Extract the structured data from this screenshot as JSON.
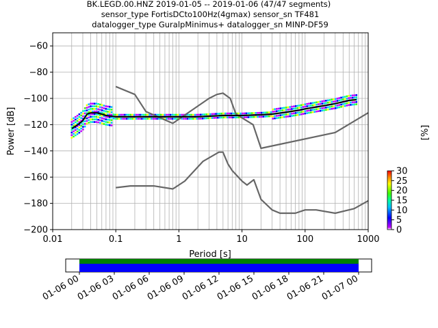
{
  "chart_data": [
    {
      "type": "line",
      "title_lines": [
        "BK.LEGD.00.HNZ   2019-01-05 -- 2019-01-06  (47/47 segments)",
        "sensor_type FortisDCto100Hz(4gmax) sensor_sn TF481",
        "datalogger_type GuralpMinimus+ datalogger_sn MINP-DF59"
      ],
      "xlabel": "Period [s]",
      "ylabel": "Power [dB]",
      "xscale": "log",
      "xlim": [
        0.01,
        1000
      ],
      "ylim": [
        -200,
        -50
      ],
      "x_ticks": [
        0.01,
        0.1,
        1,
        10,
        100,
        1000
      ],
      "x_tick_labels": [
        "0.01",
        "0.1",
        "1",
        "10",
        "100",
        "1000"
      ],
      "y_ticks": [
        -200,
        -180,
        -160,
        -140,
        -120,
        -100,
        -80,
        -60
      ],
      "y_tick_labels": [
        "−200",
        "−180",
        "−160",
        "−140",
        "−120",
        "−100",
        "−80",
        "−60"
      ],
      "grid": true,
      "series": [
        {
          "color": "#666666",
          "x": [
            0.1,
            0.2,
            0.3,
            0.8,
            3.0,
            4.0,
            5.0,
            6.5,
            8.0,
            15,
            20,
            300,
            1000
          ],
          "y": [
            -91,
            -97,
            -110,
            -119,
            -100,
            -97,
            -96,
            -100,
            -112,
            -120,
            -138,
            -126,
            -111
          ]
        },
        {
          "color": "#666666",
          "x": [
            0.1,
            0.17,
            0.4,
            0.8,
            1.24,
            2.4,
            4.3,
            5.0,
            6.0,
            7.0,
            10,
            12,
            15.4,
            20,
            30,
            40,
            70,
            100,
            150,
            300,
            600,
            1000
          ],
          "y": [
            -168,
            -166.7,
            -166.7,
            -169,
            -163,
            -148,
            -141,
            -141,
            -150,
            -155,
            -163,
            -166,
            -162,
            -177,
            -185,
            -187.5,
            -187.5,
            -185,
            -185,
            -187.5,
            -184,
            -178
          ]
        },
        {
          "color": "#000000",
          "x": [
            0.02,
            0.025,
            0.03,
            0.035,
            0.04,
            0.05,
            0.06,
            0.07,
            0.1,
            0.2,
            0.5,
            1,
            2,
            5,
            10,
            20,
            30,
            50,
            80,
            100,
            200,
            300,
            500,
            650
          ],
          "y": [
            -123,
            -120,
            -117,
            -112,
            -111,
            -111,
            -112,
            -113,
            -114,
            -114,
            -114,
            -114,
            -114,
            -113,
            -113,
            -112.5,
            -112,
            -110.5,
            -109,
            -108,
            -105.5,
            -104,
            -101.5,
            -101
          ]
        }
      ],
      "colorbar": {
        "label": "[%]",
        "ticks": [
          0,
          5,
          10,
          15,
          20,
          25,
          30
        ],
        "tick_labels": [
          "0",
          "5",
          "10",
          "15",
          "20",
          "25",
          "30"
        ]
      }
    },
    {
      "type": "bar",
      "description_layers": [
        "data availability",
        "gaps"
      ],
      "colors": [
        "#008000",
        "#0000ff"
      ],
      "x_tick_labels": [
        "01-06 00",
        "01-06 03",
        "01-06 06",
        "01-06 09",
        "01-06 12",
        "01-06 15",
        "01-06 18",
        "01-06 21",
        "01-07 00"
      ]
    }
  ]
}
